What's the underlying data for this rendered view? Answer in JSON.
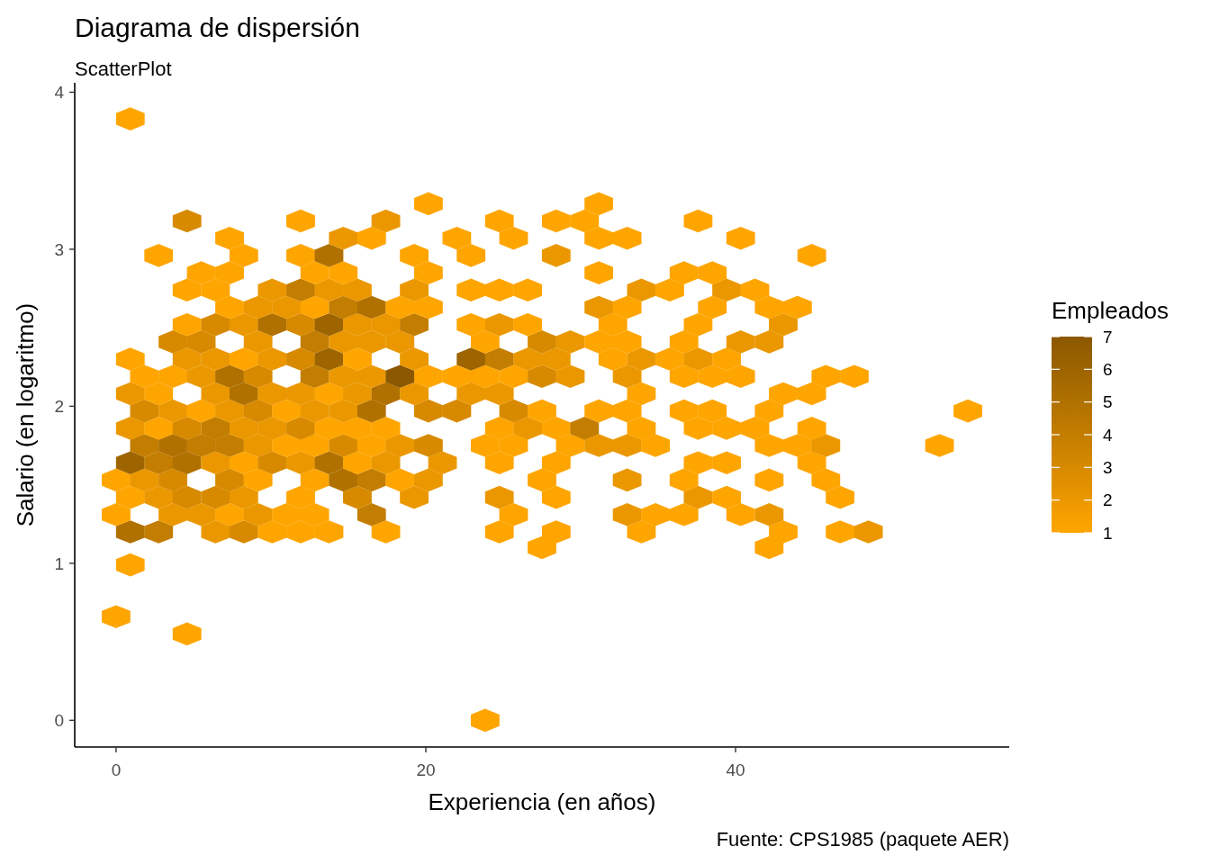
{
  "chart_data": {
    "type": "scatter",
    "title": "Diagrama de dispersión",
    "subtitle": "ScatterPlot",
    "xlabel": "Experiencia (en años)",
    "ylabel": "Salario (en logaritmo)",
    "clabel": "Empleados",
    "annotations": [
      "Fuente: CPS1985 (paquete AER)"
    ],
    "xlim": [
      -2.67,
      57.67
    ],
    "ylim": [
      -0.17,
      4.06
    ],
    "xticks": [
      0,
      20,
      40
    ],
    "yticks": [
      0,
      1,
      2,
      3,
      4
    ],
    "clim": [
      1,
      7
    ],
    "cticks": [
      1,
      2,
      3,
      4,
      5,
      6,
      7
    ],
    "grid": false,
    "x": [
      23.83,
      4.58,
      0,
      0.92,
      27.5,
      42.17,
      0.92,
      2.75,
      6.42,
      8.25,
      10.08,
      11.92,
      13.75,
      17.42,
      24.75,
      28.42,
      33.92,
      43.08,
      46.75,
      48.58,
      0,
      3.67,
      5.5,
      7.33,
      9.17,
      11,
      12.83,
      16.5,
      25.67,
      33,
      34.83,
      36.67,
      40.33,
      42.17,
      0.92,
      2.75,
      4.58,
      6.42,
      8.25,
      11.92,
      15.58,
      19.25,
      24.75,
      28.42,
      37.58,
      39.42,
      46.75,
      0,
      1.83,
      3.67,
      7.33,
      9.17,
      12.83,
      14.67,
      16.5,
      18.33,
      20.17,
      27.5,
      33,
      36.67,
      42.17,
      45.83,
      0.92,
      2.75,
      4.58,
      6.42,
      8.25,
      10.08,
      11.92,
      13.75,
      15.58,
      17.42,
      21.08,
      24.75,
      28.42,
      37.58,
      39.42,
      44.92,
      1.83,
      3.67,
      5.5,
      7.33,
      9.17,
      11,
      12.83,
      14.67,
      16.5,
      18.33,
      20.17,
      23.83,
      25.67,
      29.33,
      31.17,
      33,
      34.83,
      42.17,
      44,
      45.83,
      53.17,
      0.92,
      2.75,
      4.58,
      6.42,
      8.25,
      10.08,
      11.92,
      13.75,
      15.58,
      17.42,
      24.75,
      26.58,
      28.42,
      30.25,
      33.92,
      37.58,
      39.42,
      41.25,
      44.92,
      1.83,
      3.67,
      5.5,
      7.33,
      9.17,
      11,
      12.83,
      14.67,
      16.5,
      20.17,
      22,
      25.67,
      27.5,
      31.17,
      33,
      36.67,
      38.5,
      42.17,
      55,
      0.92,
      2.75,
      6.42,
      8.25,
      10.08,
      11.92,
      13.75,
      15.58,
      17.42,
      19.25,
      22.92,
      24.75,
      33.92,
      43.08,
      44.92,
      1.83,
      3.67,
      5.5,
      7.33,
      9.17,
      12.83,
      14.67,
      16.5,
      18.33,
      20.17,
      22,
      23.83,
      25.67,
      27.5,
      29.33,
      33,
      36.67,
      38.5,
      40.33,
      45.83,
      47.67,
      0.92,
      4.58,
      6.42,
      8.25,
      10.08,
      11.92,
      13.75,
      15.58,
      19.25,
      22.92,
      24.75,
      26.58,
      28.42,
      32.08,
      33.92,
      35.75,
      37.58,
      39.42,
      3.67,
      5.5,
      9.17,
      12.83,
      14.67,
      16.5,
      18.33,
      23.83,
      27.5,
      29.33,
      31.17,
      33,
      36.67,
      40.33,
      42.17,
      4.58,
      6.42,
      8.25,
      10.08,
      11.92,
      13.75,
      15.58,
      17.42,
      19.25,
      22.92,
      24.75,
      26.58,
      32.08,
      37.58,
      43.08,
      7.33,
      9.17,
      11,
      12.83,
      14.67,
      16.5,
      18.33,
      20.17,
      31.17,
      33,
      38.5,
      42.17,
      44,
      4.58,
      6.42,
      10.08,
      11.92,
      13.75,
      15.58,
      19.25,
      22.92,
      24.75,
      26.58,
      33.92,
      35.75,
      39.42,
      41.25,
      5.5,
      7.33,
      12.83,
      14.67,
      20.17,
      31.17,
      36.67,
      38.5,
      2.75,
      8.25,
      11.92,
      13.75,
      19.25,
      22.92,
      28.42,
      44.92,
      7.33,
      14.67,
      16.5,
      22,
      25.67,
      31.17,
      33,
      40.33,
      4.58,
      11.92,
      17.42,
      24.75,
      28.42,
      30.25,
      37.58,
      20.17,
      31.17,
      0.92
    ],
    "values": [
      0,
      0.55,
      0.66,
      0.99,
      1.1,
      1.1,
      1.2,
      1.2,
      1.2,
      1.2,
      1.2,
      1.2,
      1.2,
      1.2,
      1.2,
      1.2,
      1.2,
      1.2,
      1.2,
      1.2,
      1.31,
      1.31,
      1.31,
      1.31,
      1.31,
      1.31,
      1.31,
      1.31,
      1.31,
      1.31,
      1.31,
      1.31,
      1.31,
      1.31,
      1.42,
      1.42,
      1.42,
      1.42,
      1.42,
      1.42,
      1.42,
      1.42,
      1.42,
      1.42,
      1.42,
      1.42,
      1.42,
      1.53,
      1.53,
      1.53,
      1.53,
      1.53,
      1.53,
      1.53,
      1.53,
      1.53,
      1.53,
      1.53,
      1.53,
      1.53,
      1.53,
      1.53,
      1.64,
      1.64,
      1.64,
      1.64,
      1.64,
      1.64,
      1.64,
      1.64,
      1.64,
      1.64,
      1.64,
      1.64,
      1.64,
      1.64,
      1.64,
      1.64,
      1.75,
      1.75,
      1.75,
      1.75,
      1.75,
      1.75,
      1.75,
      1.75,
      1.75,
      1.75,
      1.75,
      1.75,
      1.75,
      1.75,
      1.75,
      1.75,
      1.75,
      1.75,
      1.75,
      1.75,
      1.75,
      1.86,
      1.86,
      1.86,
      1.86,
      1.86,
      1.86,
      1.86,
      1.86,
      1.86,
      1.86,
      1.86,
      1.86,
      1.86,
      1.86,
      1.86,
      1.86,
      1.86,
      1.86,
      1.86,
      1.97,
      1.97,
      1.97,
      1.97,
      1.97,
      1.97,
      1.97,
      1.97,
      1.97,
      1.97,
      1.97,
      1.97,
      1.97,
      1.97,
      1.97,
      1.97,
      1.97,
      1.97,
      1.97,
      2.08,
      2.08,
      2.08,
      2.08,
      2.08,
      2.08,
      2.08,
      2.08,
      2.08,
      2.08,
      2.08,
      2.08,
      2.08,
      2.08,
      2.08,
      2.19,
      2.19,
      2.19,
      2.19,
      2.19,
      2.19,
      2.19,
      2.19,
      2.19,
      2.19,
      2.19,
      2.19,
      2.19,
      2.19,
      2.19,
      2.19,
      2.19,
      2.19,
      2.19,
      2.19,
      2.19,
      2.3,
      2.3,
      2.3,
      2.3,
      2.3,
      2.3,
      2.3,
      2.3,
      2.3,
      2.3,
      2.3,
      2.3,
      2.3,
      2.3,
      2.3,
      2.3,
      2.3,
      2.3,
      2.41,
      2.41,
      2.41,
      2.41,
      2.41,
      2.41,
      2.41,
      2.41,
      2.41,
      2.41,
      2.41,
      2.41,
      2.41,
      2.41,
      2.41,
      2.52,
      2.52,
      2.52,
      2.52,
      2.52,
      2.52,
      2.52,
      2.52,
      2.52,
      2.52,
      2.52,
      2.52,
      2.52,
      2.52,
      2.52,
      2.63,
      2.63,
      2.63,
      2.63,
      2.63,
      2.63,
      2.63,
      2.63,
      2.63,
      2.63,
      2.63,
      2.63,
      2.63,
      2.74,
      2.74,
      2.74,
      2.74,
      2.74,
      2.74,
      2.74,
      2.74,
      2.74,
      2.74,
      2.74,
      2.74,
      2.74,
      2.74,
      2.85,
      2.85,
      2.85,
      2.85,
      2.85,
      2.85,
      2.85,
      2.85,
      2.96,
      2.96,
      2.96,
      2.96,
      2.96,
      2.96,
      2.96,
      2.96,
      3.07,
      3.07,
      3.07,
      3.07,
      3.07,
      3.07,
      3.07,
      3.07,
      3.18,
      3.18,
      3.18,
      3.18,
      3.18,
      3.18,
      3.18,
      3.29,
      3.29,
      3.83
    ],
    "cvalues": [
      1,
      1,
      1,
      1,
      1,
      1,
      5,
      4,
      2,
      3,
      1,
      1,
      1,
      1,
      1,
      1,
      1,
      1,
      1,
      2,
      1,
      2,
      2,
      1,
      2,
      1,
      1,
      4,
      1,
      2,
      1,
      1,
      1,
      2,
      1,
      2,
      3,
      3,
      2,
      1,
      3,
      2,
      2,
      1,
      2,
      1,
      1,
      1,
      2,
      3,
      3,
      1,
      1,
      5,
      4,
      1,
      2,
      1,
      2,
      1,
      1,
      1,
      6,
      4,
      5,
      2,
      1,
      3,
      2,
      5,
      1,
      2,
      2,
      1,
      1,
      1,
      1,
      1,
      4,
      5,
      4,
      4,
      2,
      1,
      1,
      3,
      1,
      2,
      3,
      1,
      1,
      1,
      2,
      2,
      1,
      1,
      1,
      2,
      1,
      2,
      1,
      3,
      4,
      2,
      2,
      3,
      1,
      1,
      1,
      1,
      2,
      1,
      4,
      1,
      1,
      1,
      1,
      1,
      3,
      2,
      1,
      2,
      3,
      1,
      2,
      2,
      5,
      3,
      3,
      3,
      1,
      1,
      1,
      1,
      1,
      1,
      1,
      2,
      1,
      2,
      5,
      2,
      2,
      1,
      2,
      5,
      2,
      2,
      2,
      1,
      1,
      1,
      1,
      1,
      2,
      5,
      3,
      4,
      2,
      2,
      7,
      1,
      1,
      1,
      1,
      3,
      2,
      2,
      1,
      1,
      1,
      1,
      1,
      1,
      2,
      2,
      1,
      2,
      3,
      6,
      1,
      2,
      6,
      4,
      2,
      2,
      1,
      2,
      1,
      2,
      1,
      3,
      3,
      2,
      4,
      2,
      2,
      2,
      1,
      3,
      2,
      1,
      1,
      1,
      2,
      2,
      1,
      3,
      2,
      5,
      3,
      6,
      2,
      2,
      4,
      1,
      2,
      1,
      1,
      1,
      2,
      1,
      2,
      2,
      1,
      4,
      5,
      1,
      1,
      2,
      1,
      1,
      1,
      1,
      1,
      1,
      2,
      4,
      2,
      2,
      2,
      1,
      1,
      1,
      2,
      1,
      2,
      1,
      1,
      1,
      1,
      1,
      1,
      1,
      1,
      1,
      1,
      1,
      1,
      5,
      1,
      1,
      2,
      1,
      1,
      2,
      1,
      1,
      1,
      1,
      1,
      1,
      3,
      1,
      2,
      1,
      1,
      1,
      1,
      1,
      1,
      1
    ]
  }
}
